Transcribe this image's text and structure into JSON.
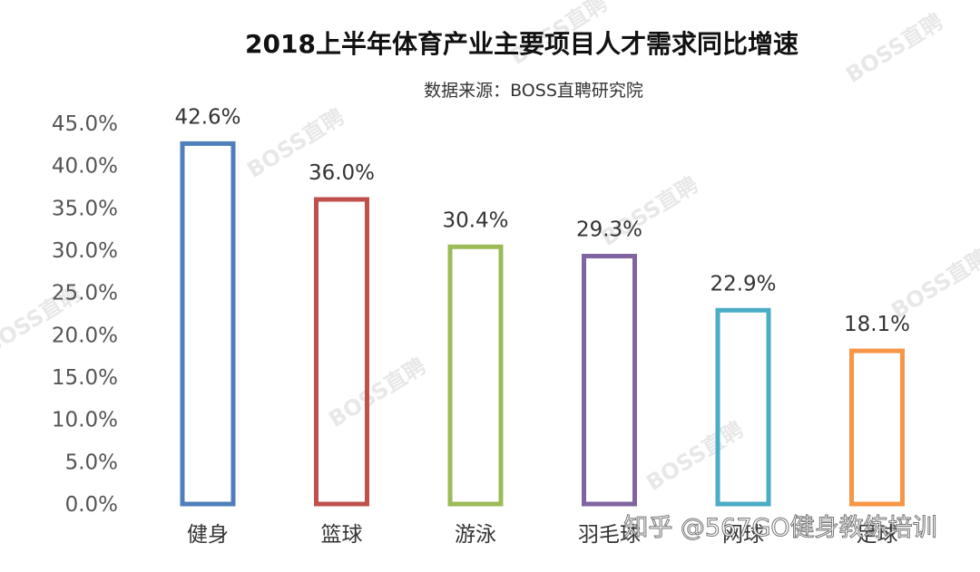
{
  "chart_data": {
    "type": "bar",
    "title": "2018上半年体育产业主要项目人才需求同比增速",
    "subtitle": "数据来源：BOSS直聘研究院",
    "categories": [
      "健身",
      "篮球",
      "游泳",
      "羽毛球",
      "网球",
      "足球"
    ],
    "values": [
      42.6,
      36.0,
      30.4,
      29.3,
      22.9,
      18.1
    ],
    "value_labels": [
      "42.6%",
      "36.0%",
      "30.4%",
      "29.3%",
      "22.9%",
      "18.1%"
    ],
    "bar_colors": [
      "#4f7fbb",
      "#c0504d",
      "#9bbb59",
      "#8064a2",
      "#4bacc6",
      "#f79646"
    ],
    "ylim": [
      0,
      45
    ],
    "yticks": [
      0,
      5,
      10,
      15,
      20,
      25,
      30,
      35,
      40,
      45
    ],
    "ytick_labels": [
      "0.0%",
      "5.0%",
      "10.0%",
      "15.0%",
      "20.0%",
      "25.0%",
      "30.0%",
      "35.0%",
      "40.0%",
      "45.0%"
    ],
    "grid": false,
    "legend": "none",
    "bar_style": "outline"
  },
  "watermarks": {
    "brand": "BOSS直聘",
    "footer": "知乎 @567GO健身教练培训"
  }
}
